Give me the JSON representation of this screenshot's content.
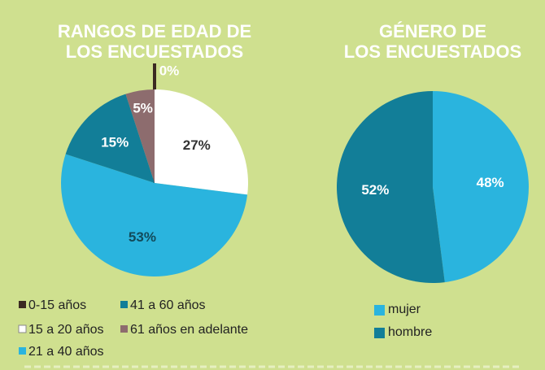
{
  "chart_data": [
    {
      "type": "pie",
      "title": [
        "RANGOS DE EDAD DE",
        "LOS ENCUESTADOS"
      ],
      "categories": [
        "0-15 años",
        "15 a 20 años",
        "21 a 40 años",
        "41 a 60 años",
        "61 años en adelante"
      ],
      "values": [
        0,
        27,
        53,
        15,
        5
      ],
      "value_labels": [
        "0%",
        "27%",
        "53%",
        "15%",
        "5%"
      ],
      "colors": [
        "#3b2a22",
        "#ffffff",
        "#2ab4de",
        "#127e98",
        "#8d6c6e"
      ]
    },
    {
      "type": "pie",
      "title": [
        "GÉNERO DE",
        "LOS ENCUESTADOS"
      ],
      "categories": [
        "mujer",
        "hombre"
      ],
      "values": [
        48,
        52
      ],
      "value_labels": [
        "48%",
        "52%"
      ],
      "colors": [
        "#2ab4de",
        "#127e98"
      ]
    }
  ]
}
